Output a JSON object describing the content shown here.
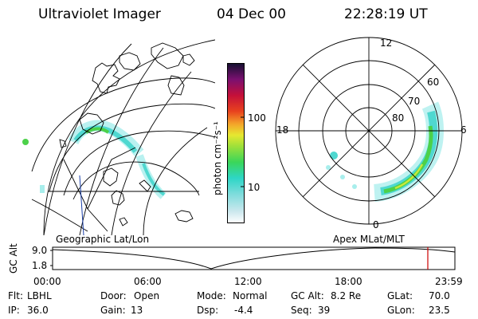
{
  "header": {
    "instrument": "Ultraviolet Imager",
    "date": "04 Dec 00",
    "time": "22:28:19 UT"
  },
  "colorbar": {
    "label": "photon cm⁻²s⁻¹",
    "ticks": [
      "100",
      "10"
    ]
  },
  "left_panel": {
    "caption": "Geographic Lat/Lon"
  },
  "right_panel": {
    "caption": "Apex  MLat/MLT",
    "mlt_labels": {
      "top": "12",
      "left": "18",
      "right": "6",
      "bottom": "0"
    },
    "lat_labels": [
      "60",
      "70",
      "80"
    ]
  },
  "altitude_plot": {
    "ylabel": "GC Alt",
    "ymax": "9.0",
    "ymin": "1.8",
    "x_ticks": [
      "00:00",
      "06:00",
      "12:00",
      "18:00",
      "23:59"
    ],
    "marker_color": "#cc0000"
  },
  "info": {
    "filter_label": "Flt:",
    "filter": "LBHL",
    "ip_label": "IP:",
    "ip": "36.0",
    "door_label": "Door:",
    "door": "Open",
    "gain_label": "Gain:",
    "gain": "13",
    "mode_label": "Mode:",
    "mode": "Normal",
    "dsp_label": "Dsp:",
    "dsp": "-4.4",
    "gcalt_label": "GC Alt:",
    "gcalt": "8.2 Re",
    "seq_label": "Seq:",
    "seq": "39",
    "glat_label": "GLat:",
    "glat": "70.0",
    "glon_label": "GLon:",
    "glon": "23.5"
  },
  "colors": {
    "aurora_light": "#a8eeec",
    "aurora_mid": "#4fd8d0",
    "aurora_green": "#4cd14a",
    "aurora_yellow": "#c9e83c"
  }
}
